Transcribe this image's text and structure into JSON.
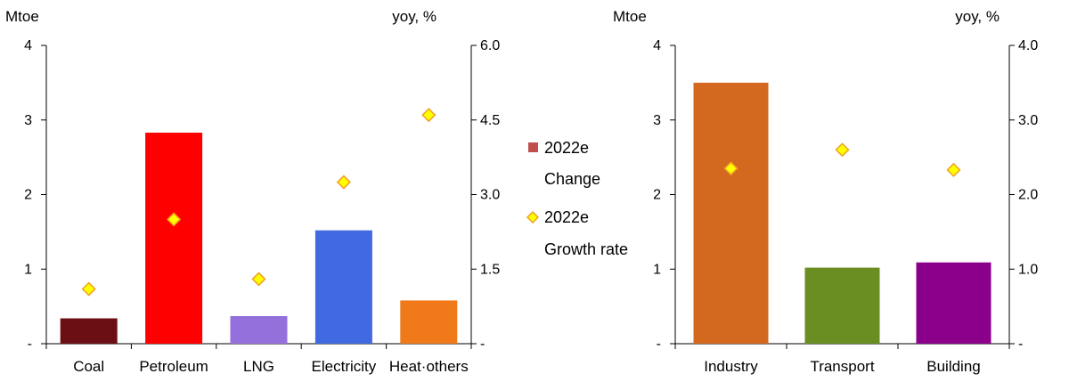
{
  "colors": {
    "marker_fill": "#FFFF00",
    "marker_stroke": "#F0A020",
    "legend_bar": "#C0504D"
  },
  "legend": {
    "bar_label_1": "2022e",
    "bar_label_2": "Change",
    "marker_label_1": "2022e",
    "marker_label_2": "Growth rate"
  },
  "chart_data": [
    {
      "type": "bar",
      "title": "",
      "unit_left": "Mtoe",
      "unit_right": "yoy, %",
      "categories": [
        "Coal",
        "Petroleum",
        "LNG",
        "Electricity",
        "Heat·others"
      ],
      "bar_colors": [
        "#6B0F14",
        "#FF0000",
        "#9370DB",
        "#4169E1",
        "#F07A1A"
      ],
      "series": [
        {
          "name": "2022e Change",
          "axis": "left",
          "values": [
            0.34,
            2.83,
            0.37,
            1.52,
            0.58
          ]
        },
        {
          "name": "2022e Growth rate",
          "axis": "right",
          "marker": "diamond",
          "values": [
            1.1,
            2.5,
            1.3,
            3.25,
            4.6
          ]
        }
      ],
      "ylim_left": [
        0,
        4
      ],
      "yticks_left": [
        "-",
        "1",
        "2",
        "3",
        "4"
      ],
      "ylim_right": [
        0,
        6
      ],
      "yticks_right": [
        "-",
        "1.5",
        "3.0",
        "4.5",
        "6.0"
      ],
      "legend_position": "right"
    },
    {
      "type": "bar",
      "title": "",
      "unit_left": "Mtoe",
      "unit_right": "yoy, %",
      "categories": [
        "Industry",
        "Transport",
        "Building"
      ],
      "bar_colors": [
        "#D2691E",
        "#6B8E23",
        "#8B008B"
      ],
      "series": [
        {
          "name": "2022e Change",
          "axis": "left",
          "values": [
            3.5,
            1.02,
            1.09
          ]
        },
        {
          "name": "2022e Growth rate",
          "axis": "right",
          "marker": "diamond",
          "values": [
            2.35,
            2.6,
            2.33
          ]
        }
      ],
      "ylim_left": [
        0,
        4
      ],
      "yticks_left": [
        "-",
        "1",
        "2",
        "3",
        "4"
      ],
      "ylim_right": [
        0,
        4
      ],
      "yticks_right": [
        "-",
        "1.0",
        "2.0",
        "3.0",
        "4.0"
      ]
    }
  ]
}
